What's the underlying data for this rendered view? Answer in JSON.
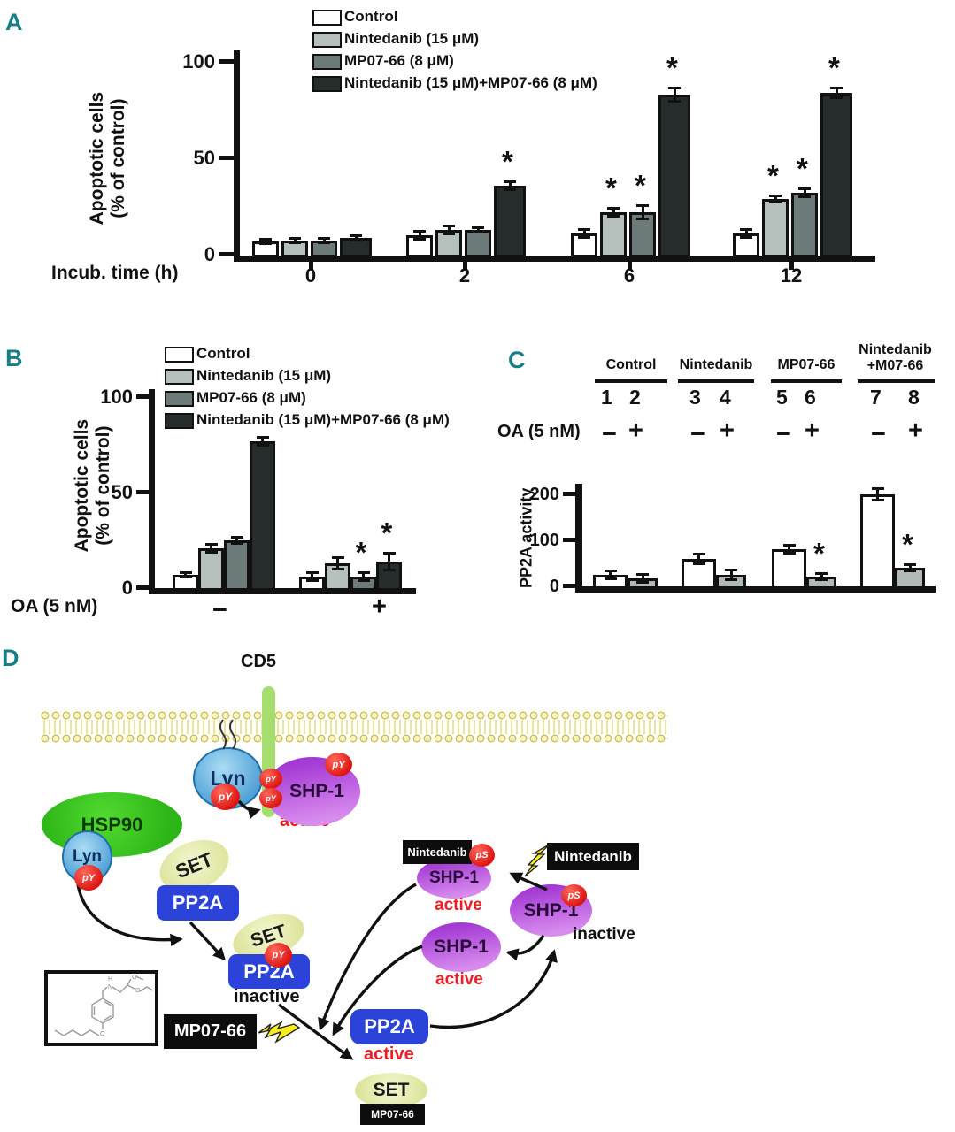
{
  "panels": {
    "a": "A",
    "b": "B",
    "c": "C",
    "d": "D"
  },
  "accent_color": "#157f85",
  "chart_data": [
    {
      "id": "A",
      "type": "bar",
      "title": "",
      "xlabel": "Incub. time (h)",
      "ylabel": "Apoptotic cells\n(% of control)",
      "yticks": [
        0,
        50,
        100
      ],
      "ylim": [
        0,
        110
      ],
      "grid": false,
      "legend_position": "top",
      "categories": [
        "0",
        "2",
        "6",
        "12"
      ],
      "series": [
        {
          "name": "Control",
          "color": "#ffffff",
          "values": [
            7,
            10,
            11,
            11
          ],
          "errors": [
            1,
            2,
            2,
            2
          ],
          "sig": [
            false,
            false,
            false,
            false
          ]
        },
        {
          "name": "Nintedanib (15 μM)",
          "color": "#b5bfbc",
          "values": [
            7.5,
            13,
            22,
            29
          ],
          "errors": [
            1,
            2,
            2,
            1.5
          ],
          "sig": [
            false,
            false,
            true,
            true
          ]
        },
        {
          "name": "MP07-66 (8 μM)",
          "color": "#6d7a7a",
          "values": [
            7.5,
            13,
            22,
            32
          ],
          "errors": [
            1,
            1,
            3,
            2
          ],
          "sig": [
            false,
            false,
            true,
            true
          ]
        },
        {
          "name": "Nintedanib (15 μM)+MP07-66 (8 μM)",
          "color": "#262b2b",
          "values": [
            8.5,
            36,
            83,
            84
          ],
          "errors": [
            1,
            2,
            3,
            2.5
          ],
          "sig": [
            false,
            true,
            true,
            true
          ]
        }
      ]
    },
    {
      "id": "B",
      "type": "bar",
      "xlabel": "OA (5 nM)",
      "ylabel": "Apoptotic cells\n(% of control)",
      "yticks": [
        0,
        50,
        100
      ],
      "ylim": [
        0,
        110
      ],
      "grid": false,
      "legend_position": "top",
      "categories": [
        "−",
        "+"
      ],
      "series": [
        {
          "name": "Control",
          "color": "#ffffff",
          "values": [
            7,
            6
          ],
          "errors": [
            1,
            2
          ],
          "sig": [
            false,
            false
          ]
        },
        {
          "name": "Nintedanib (15 μM)",
          "color": "#b5bfbc",
          "values": [
            21,
            13
          ],
          "errors": [
            2,
            3
          ],
          "sig": [
            false,
            false
          ]
        },
        {
          "name": "MP07-66 (8 μM)",
          "color": "#6d7a7a",
          "values": [
            25,
            6
          ],
          "errors": [
            1.5,
            2
          ],
          "sig": [
            false,
            true
          ]
        },
        {
          "name": "Nintedanib (15 μM)+MP07-66 (8 μM)",
          "color": "#262b2b",
          "values": [
            77,
            14
          ],
          "errors": [
            2,
            4
          ],
          "sig": [
            false,
            true
          ]
        }
      ]
    },
    {
      "id": "C",
      "type": "bar",
      "xlabel": "",
      "ylabel": "PP2A activity",
      "yticks": [
        0,
        100,
        200
      ],
      "ylim": [
        0,
        230
      ],
      "grid": false,
      "categories": [
        "Control",
        "Nintedanib",
        "MP07-66",
        "Nintedanib\n+M07-66"
      ],
      "lanes": [
        "1",
        "2",
        "3",
        "4",
        "5",
        "6",
        "7",
        "8"
      ],
      "oa_label": "OA (5 nM)",
      "oa_row": [
        "−",
        "+",
        "−",
        "+",
        "−",
        "+",
        "−",
        "+"
      ],
      "series": [
        {
          "name": "OA −",
          "color": "#ffffff",
          "values": [
            25,
            60,
            80,
            200
          ],
          "errors": [
            8,
            9,
            7,
            12
          ],
          "sig": [
            false,
            false,
            false,
            false
          ]
        },
        {
          "name": "OA +",
          "color": "#b2bab6",
          "values": [
            18,
            25,
            22,
            40
          ],
          "errors": [
            7,
            10,
            5,
            6
          ],
          "sig": [
            false,
            false,
            true,
            true
          ]
        }
      ]
    }
  ],
  "diagram": {
    "cd5": "CD5",
    "lyn": "Lyn",
    "shp1": "SHP-1",
    "hsp90": "HSP90",
    "set": "SET",
    "pp2a": "PP2A",
    "nintedanib": "Nintedanib",
    "mp07_66": "MP07-66",
    "py": "pY",
    "ps": "pS",
    "active": "active",
    "inactive": "inactive"
  }
}
